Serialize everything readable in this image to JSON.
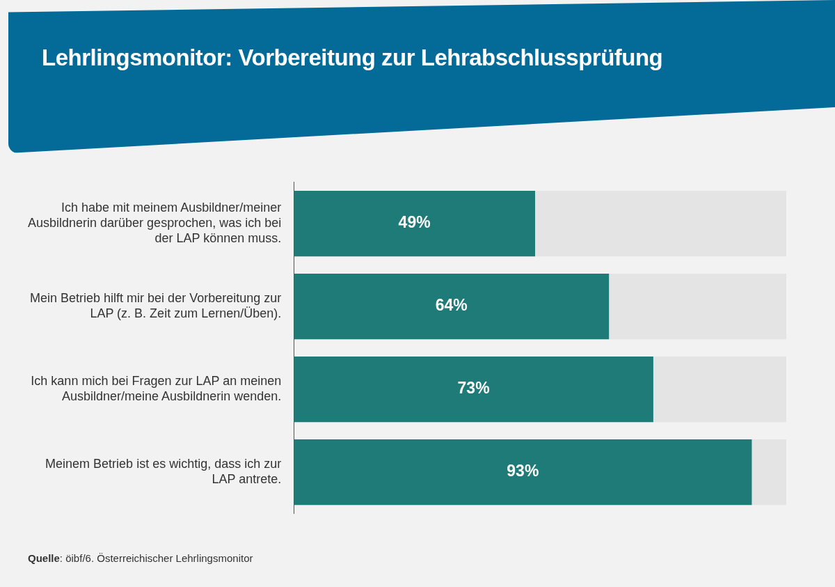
{
  "chart_data": {
    "type": "bar",
    "orientation": "horizontal",
    "stacked": true,
    "title": "Lehrlingsmonitor: Vorbereitung zur Lehrabschlussprüfung",
    "categories": [
      "Ich habe mit meinem Ausbildner/meiner Ausbildnerin darüber gesprochen, was ich bei der LAP können muss.",
      "Mein Betrieb hilft mir bei der Vorbereitung zur LAP (z. B. Zeit zum Lernen/Üben).",
      "Ich kann mich bei Fragen zur LAP an meinen Ausbildner/meine Ausbildnerin wenden.",
      "Meinem Betrieb ist es wichtig, dass ich zur LAP antrete."
    ],
    "series": [
      {
        "color": "#1e7b78",
        "values": [
          49,
          64,
          73,
          93
        ],
        "value_labels": [
          "49%",
          "64%",
          "73%",
          "93%"
        ]
      },
      {
        "color": "#e4e4e4",
        "values": [
          51,
          36,
          27,
          7
        ]
      }
    ],
    "xlim": [
      0,
      100
    ],
    "tick_labels": "y",
    "legend": false,
    "annotations": [
      "Quelle: öibf/6. Österreichischer Lehrlingsmonitor"
    ]
  }
}
